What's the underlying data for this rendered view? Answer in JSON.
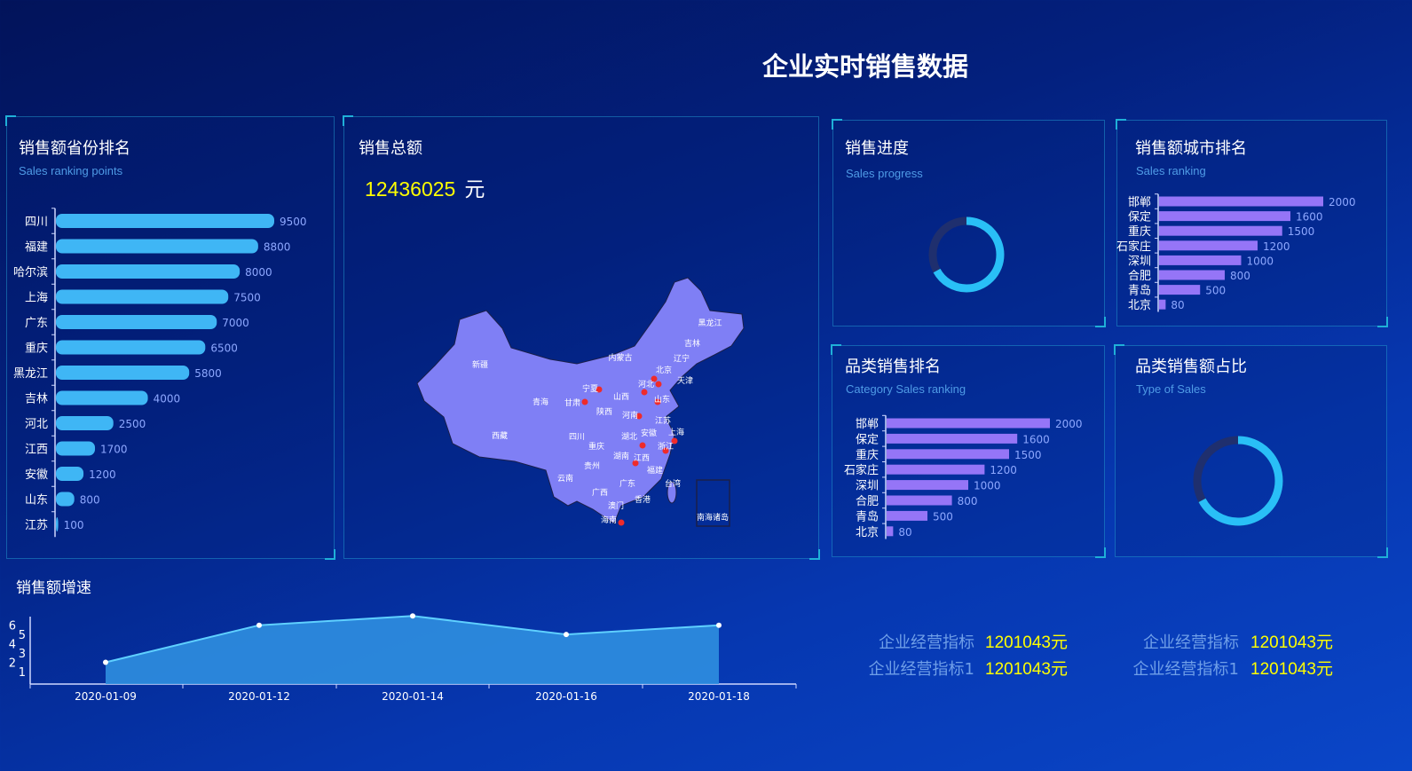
{
  "header": {
    "title": "企业实时销售数据"
  },
  "panels": {
    "province": {
      "title": "销售额省份排名",
      "subtitle": "Sales ranking points"
    },
    "total": {
      "title": "销售总额",
      "amount": "12436025",
      "unit": "元"
    },
    "progress": {
      "title": "销售进度",
      "subtitle": "Sales progress"
    },
    "city": {
      "title": "销售额城市排名",
      "subtitle": "Sales ranking"
    },
    "category": {
      "title": "品类销售排名",
      "subtitle": "Category Sales  ranking"
    },
    "category_share": {
      "title": "品类销售额占比",
      "subtitle": "Type of Sales"
    },
    "growth": {
      "title": "销售额增速"
    }
  },
  "map": {
    "fill": "#7f7ff5",
    "regions": [
      "新疆",
      "西藏",
      "青海",
      "甘肃",
      "宁夏",
      "内蒙古",
      "黑龙江",
      "吉林",
      "辽宁",
      "北京",
      "天津",
      "河北",
      "山西",
      "山东",
      "陕西",
      "河南",
      "江苏",
      "上海",
      "安徽",
      "四川",
      "重庆",
      "湖北",
      "浙江",
      "湖南",
      "江西",
      "贵州",
      "云南",
      "福建",
      "广西",
      "广东",
      "台湾",
      "香港",
      "澳门",
      "海南",
      "南海诸岛"
    ]
  },
  "indicators": [
    {
      "label": "企业经营指标",
      "value": "1201043元"
    },
    {
      "label": "企业经营指标",
      "value": "1201043元"
    },
    {
      "label": "企业经营指标1",
      "value": "1201043元"
    },
    {
      "label": "企业经营指标1",
      "value": "1201043元"
    }
  ],
  "colors": {
    "accent_value": "#ffff00",
    "province_bar": "#3fb6f5",
    "city_bar": "#9575f7",
    "donut_fill": "#29bff7",
    "donut_track": "#1f2f6e",
    "area": "#2f8fe0"
  },
  "chart_data": [
    {
      "type": "bar",
      "id": "province",
      "orientation": "horizontal",
      "categories": [
        "四川",
        "福建",
        "哈尔滨",
        "上海",
        "广东",
        "重庆",
        "黑龙江",
        "吉林",
        "河北",
        "江西",
        "安徽",
        "山东",
        "江苏"
      ],
      "values": [
        9500,
        8800,
        8000,
        7500,
        7000,
        6500,
        5800,
        4000,
        2500,
        1700,
        1200,
        800,
        100
      ]
    },
    {
      "type": "pie",
      "id": "progress",
      "style": "donut",
      "value": 0.67
    },
    {
      "type": "bar",
      "id": "city",
      "orientation": "horizontal",
      "categories": [
        "邯郸",
        "保定",
        "重庆",
        "石家庄",
        "深圳",
        "合肥",
        "青岛",
        "北京"
      ],
      "values": [
        2000,
        1600,
        1500,
        1200,
        1000,
        800,
        500,
        80
      ]
    },
    {
      "type": "bar",
      "id": "category",
      "orientation": "horizontal",
      "categories": [
        "邯郸",
        "保定",
        "重庆",
        "石家庄",
        "深圳",
        "合肥",
        "青岛",
        "北京"
      ],
      "values": [
        2000,
        1600,
        1500,
        1200,
        1000,
        800,
        500,
        80
      ]
    },
    {
      "type": "pie",
      "id": "category_share",
      "style": "donut",
      "value": 0.67
    },
    {
      "type": "area",
      "id": "growth",
      "x": [
        "2020-01-09",
        "2020-01-12",
        "2020-01-14",
        "2020-01-16",
        "2020-01-18"
      ],
      "values": [
        2,
        6,
        7,
        5,
        6
      ],
      "yticks": [
        1,
        2,
        3,
        4,
        5,
        6
      ]
    }
  ]
}
